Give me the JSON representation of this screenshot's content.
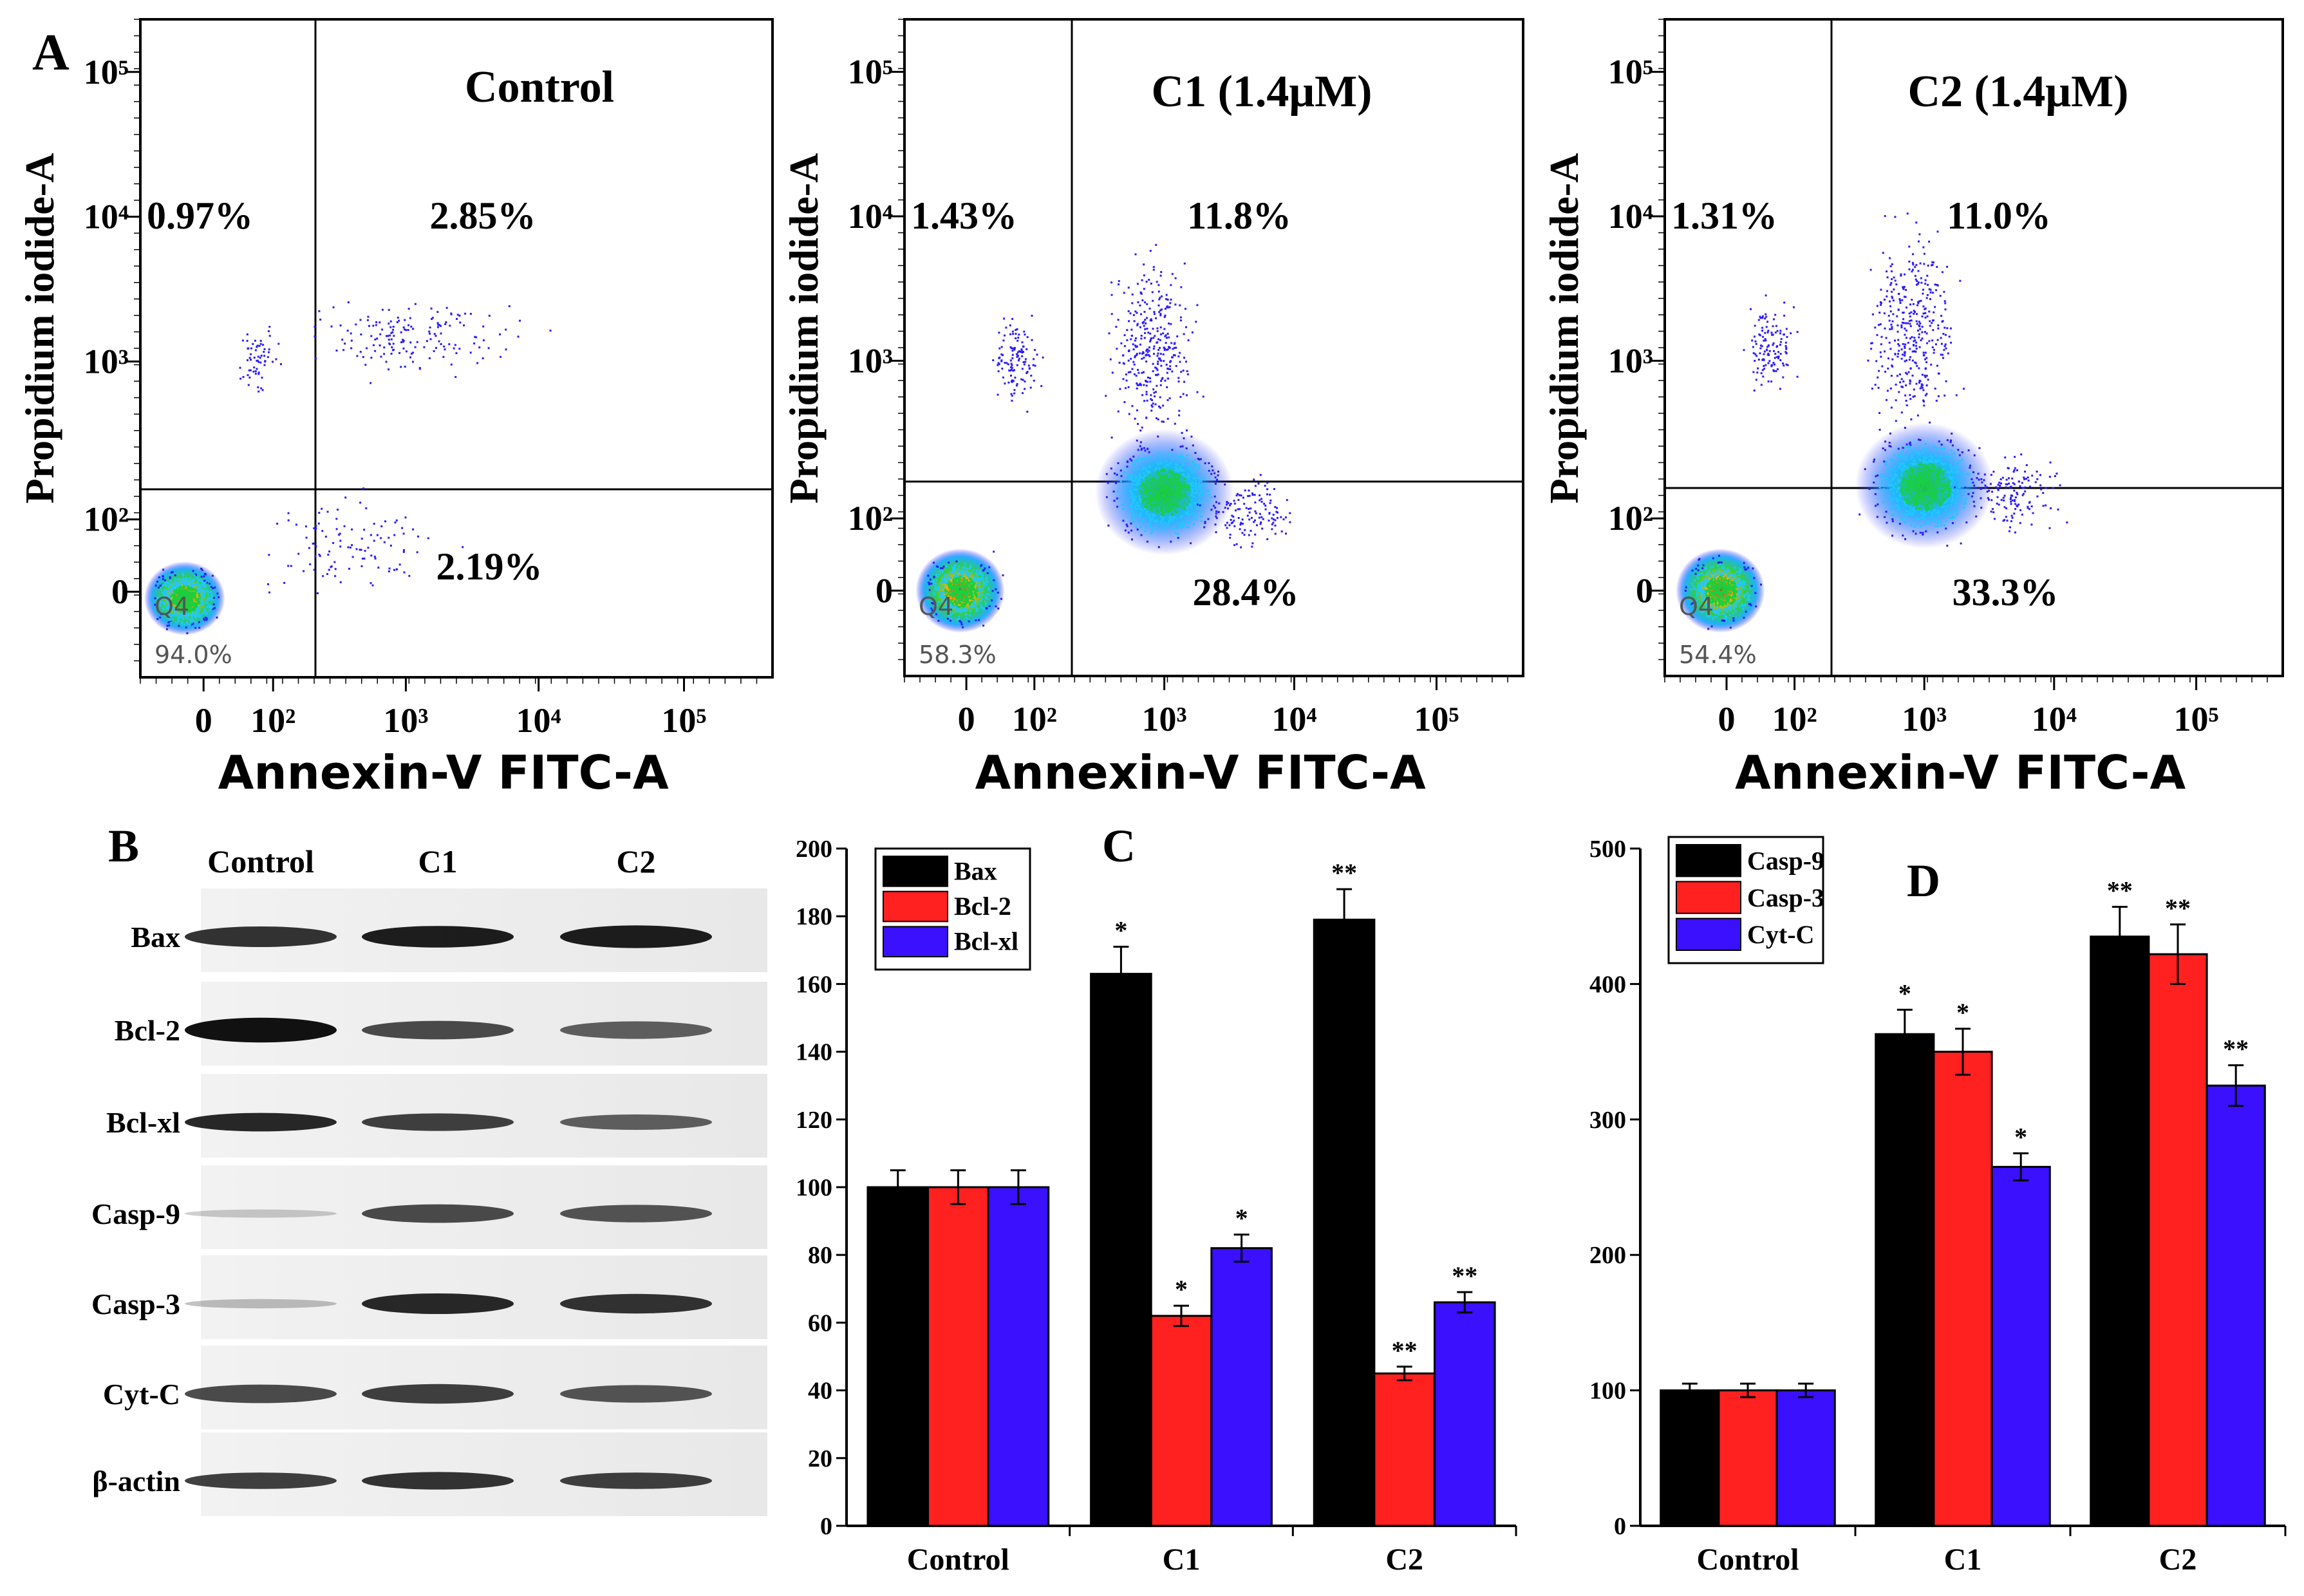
{
  "figure": {
    "panel_labels": {
      "a": "A",
      "b": "B",
      "c": "C",
      "d": "D"
    }
  },
  "colors": {
    "black_bar": "#000000",
    "red_bar": "#ff2020",
    "blue_bar": "#3a10ff",
    "dot_blue": "#2a1aff",
    "dot_cyan": "#20c8ff",
    "dot_green": "#18d040",
    "dot_yellow": "#f0e020",
    "dot_red": "#ff2000"
  },
  "flow": {
    "xlabel": "Annexin-V FITC-A",
    "ylabel": "Propidium iodide-A",
    "x_ticks": [
      "0",
      "10²",
      "10³",
      "10⁴",
      "10⁵"
    ],
    "y_ticks": [
      "0",
      "10²",
      "10³",
      "10⁴",
      "10⁵"
    ],
    "gate_label": "Q4",
    "panels": [
      {
        "title": "Control",
        "q1": "0.97%",
        "q2": "2.85%",
        "q3": "2.19%",
        "q4": "94.0%"
      },
      {
        "title": "C1 (1.4μM)",
        "q1": "1.43%",
        "q2": "11.8%",
        "q3": "28.4%",
        "q4": "58.3%"
      },
      {
        "title": "C2 (1.4μM)",
        "q1": "1.31%",
        "q2": "11.0%",
        "q3": "33.3%",
        "q4": "54.4%"
      }
    ]
  },
  "western": {
    "lanes": [
      "Control",
      "C1",
      "C2"
    ],
    "proteins": [
      "Bax",
      "Bcl-2",
      "Bcl-xl",
      "Casp-9",
      "Casp-3",
      "Cyt-C",
      "β-actin"
    ]
  },
  "chart_data": [
    {
      "panel": "C",
      "type": "bar",
      "categories": [
        "Control",
        "C1",
        "C2"
      ],
      "series": [
        {
          "name": "Bax",
          "values": [
            100,
            163,
            179
          ],
          "errors": [
            5,
            8,
            9
          ],
          "marks": [
            "",
            "*",
            "**"
          ]
        },
        {
          "name": "Bcl-2",
          "values": [
            100,
            62,
            45
          ],
          "errors": [
            5,
            3,
            2
          ],
          "marks": [
            "",
            "*",
            "**"
          ]
        },
        {
          "name": "Bcl-xl",
          "values": [
            100,
            82,
            66
          ],
          "errors": [
            5,
            4,
            3
          ],
          "marks": [
            "",
            "*",
            "**"
          ]
        }
      ],
      "ylim": [
        0,
        200
      ],
      "yticks": [
        0,
        20,
        40,
        60,
        80,
        100,
        120,
        140,
        160,
        180,
        200
      ],
      "legend": "top-left"
    },
    {
      "panel": "D",
      "type": "bar",
      "categories": [
        "Control",
        "C1",
        "C2"
      ],
      "series": [
        {
          "name": "Casp-9",
          "values": [
            100,
            363,
            435
          ],
          "errors": [
            5,
            18,
            22
          ],
          "marks": [
            "",
            "*",
            "**"
          ]
        },
        {
          "name": "Casp-3",
          "values": [
            100,
            350,
            422
          ],
          "errors": [
            5,
            17,
            22
          ],
          "marks": [
            "",
            "*",
            "**"
          ]
        },
        {
          "name": "Cyt-C",
          "values": [
            100,
            265,
            325
          ],
          "errors": [
            5,
            10,
            15
          ],
          "marks": [
            "",
            "*",
            "**"
          ]
        }
      ],
      "ylim": [
        0,
        500
      ],
      "yticks": [
        0,
        100,
        200,
        300,
        400,
        500
      ],
      "legend": "top-left"
    }
  ]
}
